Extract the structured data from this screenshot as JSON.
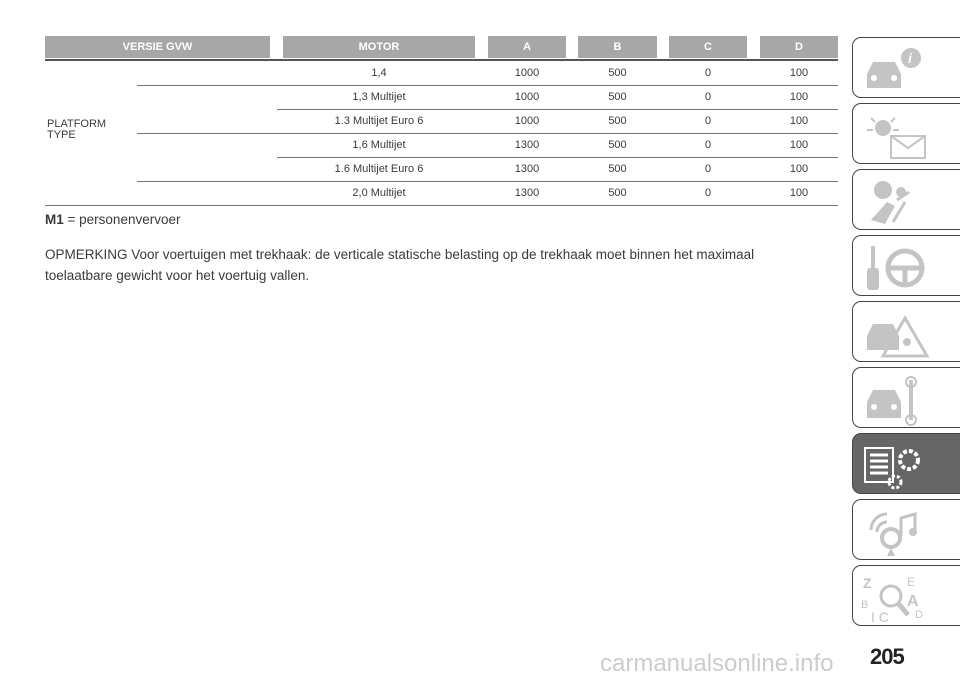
{
  "table": {
    "headers": [
      "VERSIE GVW",
      "MOTOR",
      "A",
      "B",
      "C",
      "D"
    ],
    "group_label": "PLATFORM TYPE",
    "rows": [
      {
        "motor": "1,4",
        "a": "1000",
        "b": "500",
        "c": "0",
        "d": "100"
      },
      {
        "motor": "1,3 Multijet",
        "a": "1000",
        "b": "500",
        "c": "0",
        "d": "100"
      },
      {
        "motor": "1.3 Multijet Euro 6",
        "a": "1000",
        "b": "500",
        "c": "0",
        "d": "100"
      },
      {
        "motor": "1,6 Multijet",
        "a": "1300",
        "b": "500",
        "c": "0",
        "d": "100"
      },
      {
        "motor": "1.6 Multijet Euro 6",
        "a": "1300",
        "b": "500",
        "c": "0",
        "d": "100"
      },
      {
        "motor": "2,0 Multijet",
        "a": "1300",
        "b": "500",
        "c": "0",
        "d": "100"
      }
    ]
  },
  "legend": {
    "term": "M1",
    "definition": "= personenvervoer"
  },
  "note": "OPMERKING Voor voertuigen met trekhaak: de verticale statische belasting op de trekhaak moet binnen het maximaal toelaatbare gewicht voor het voertuig vallen.",
  "sidebar": {
    "tabs": [
      {
        "icon": "car-info-icon"
      },
      {
        "icon": "warning-light-message-icon"
      },
      {
        "icon": "airbag-seat-icon"
      },
      {
        "icon": "key-steering-wheel-icon"
      },
      {
        "icon": "car-warning-triangle-icon"
      },
      {
        "icon": "car-wrench-icon"
      },
      {
        "icon": "specs-gears-icon",
        "active": true
      },
      {
        "icon": "multimedia-icon"
      },
      {
        "icon": "index-search-icon"
      }
    ],
    "active_color": "#666666"
  },
  "page_number": "205",
  "watermark": "carmanualsonline.info"
}
